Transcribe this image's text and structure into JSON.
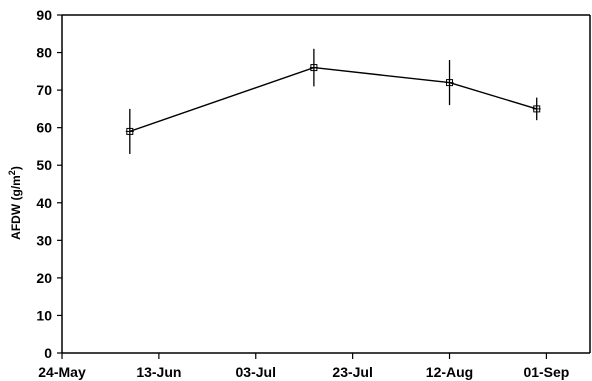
{
  "chart_data": {
    "type": "line",
    "title": "",
    "xlabel": "",
    "ylabel_main": "AFDW (g/m",
    "ylabel_sup": "2",
    "ylabel_close": ")",
    "x_ticks": [
      "24-May",
      "13-Jun",
      "03-Jul",
      "23-Jul",
      "12-Aug",
      "01-Sep"
    ],
    "x_tick_dates": [
      "2001-05-24",
      "2001-06-13",
      "2001-07-03",
      "2001-07-23",
      "2001-08-12",
      "2001-09-01"
    ],
    "xlim": [
      "2001-05-24",
      "2001-09-10"
    ],
    "y_ticks": [
      0,
      10,
      20,
      30,
      40,
      50,
      60,
      70,
      80,
      90
    ],
    "ylim": [
      0,
      90
    ],
    "grid": false,
    "series": [
      {
        "x": [
          "2001-06-07",
          "2001-07-15",
          "2001-08-12",
          "2001-08-30"
        ],
        "y": [
          59,
          76,
          72,
          65
        ],
        "error": [
          6,
          5,
          6,
          3
        ]
      }
    ]
  }
}
